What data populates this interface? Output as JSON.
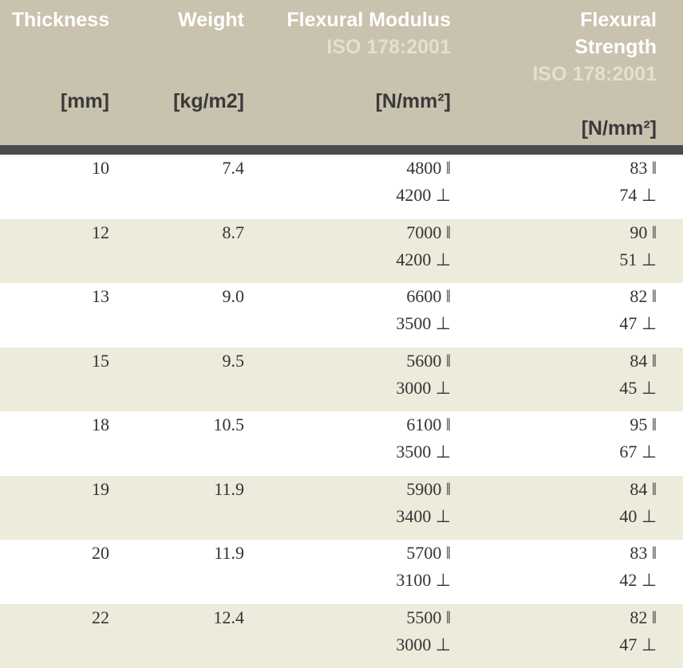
{
  "header": {
    "columns": [
      {
        "title": "Thickness",
        "unit": "[mm]"
      },
      {
        "title": "Weight",
        "unit": "[kg/m2]"
      },
      {
        "title": "Flexural Modulus",
        "standard": "ISO 178:2001",
        "unit": "[N/mm²]"
      },
      {
        "title": "Flexural Strength",
        "standard": "ISO 178:2001",
        "unit": "[N/mm²]"
      }
    ]
  },
  "table": {
    "rows": [
      {
        "thickness": "10",
        "weight": "7.4",
        "modulus": [
          "4800 ‖",
          "4200 ⊥"
        ],
        "strength": [
          "83 ‖",
          "74 ⊥"
        ]
      },
      {
        "thickness": "12",
        "weight": "8.7",
        "modulus": [
          "7000 ‖",
          "4200 ⊥"
        ],
        "strength": [
          "90 ‖",
          "51 ⊥"
        ]
      },
      {
        "thickness": "13",
        "weight": "9.0",
        "modulus": [
          "6600 ‖",
          "3500 ⊥"
        ],
        "strength": [
          "82 ‖",
          "47 ⊥"
        ]
      },
      {
        "thickness": "15",
        "weight": "9.5",
        "modulus": [
          "5600 ‖",
          "3000 ⊥"
        ],
        "strength": [
          "84 ‖",
          "45 ⊥"
        ]
      },
      {
        "thickness": "18",
        "weight": "10.5",
        "modulus": [
          "6100 ‖",
          "3500 ⊥"
        ],
        "strength": [
          "95 ‖",
          "67 ⊥"
        ]
      },
      {
        "thickness": "19",
        "weight": "11.9",
        "modulus": [
          "5900 ‖",
          "3400 ⊥"
        ],
        "strength": [
          "84 ‖",
          "40 ⊥"
        ]
      },
      {
        "thickness": "20",
        "weight": "11.9",
        "modulus": [
          "5700 ‖",
          "3100 ⊥"
        ],
        "strength": [
          "83 ‖",
          "42 ⊥"
        ]
      },
      {
        "thickness": "22",
        "weight": "12.4",
        "modulus": [
          "5500 ‖",
          "3000 ⊥"
        ],
        "strength": [
          "82 ‖",
          "47 ⊥"
        ]
      }
    ]
  }
}
